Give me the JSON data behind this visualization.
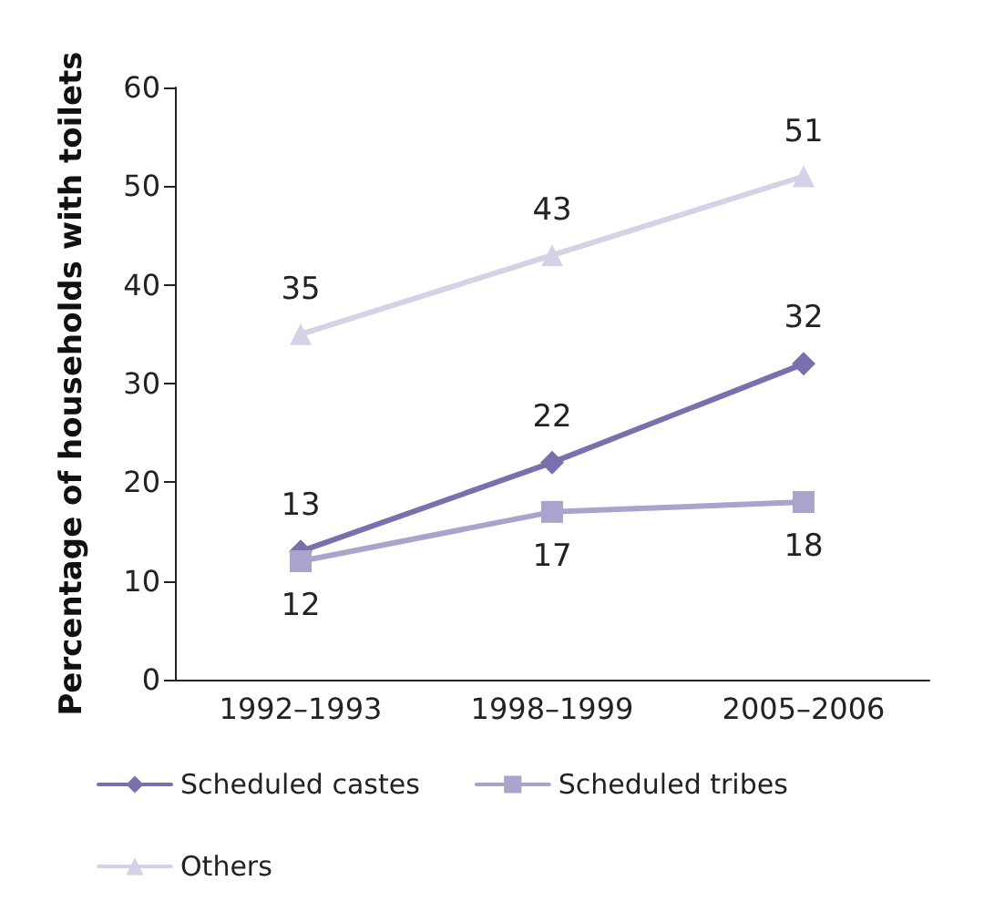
{
  "chart_data": {
    "type": "line",
    "ylabel": "Percentage of households with toilets",
    "categories": [
      "1992–1993",
      "1998–1999",
      "2005–2006"
    ],
    "series": [
      {
        "name": "Scheduled castes",
        "color": "#7b6fad",
        "values": [
          13,
          22,
          32
        ],
        "marker": "diamond"
      },
      {
        "name": "Scheduled tribes",
        "color": "#aaa4cd",
        "values": [
          12,
          17,
          18
        ],
        "marker": "square"
      },
      {
        "name": "Others",
        "color": "#d5d2e7",
        "values": [
          35,
          43,
          51
        ],
        "marker": "triangle"
      }
    ],
    "ylim": [
      0,
      60
    ],
    "yticks": [
      0,
      10,
      20,
      30,
      40,
      50,
      60
    ],
    "grid": false,
    "legend": "bottom",
    "data_labels": true,
    "line_style": "solid"
  }
}
